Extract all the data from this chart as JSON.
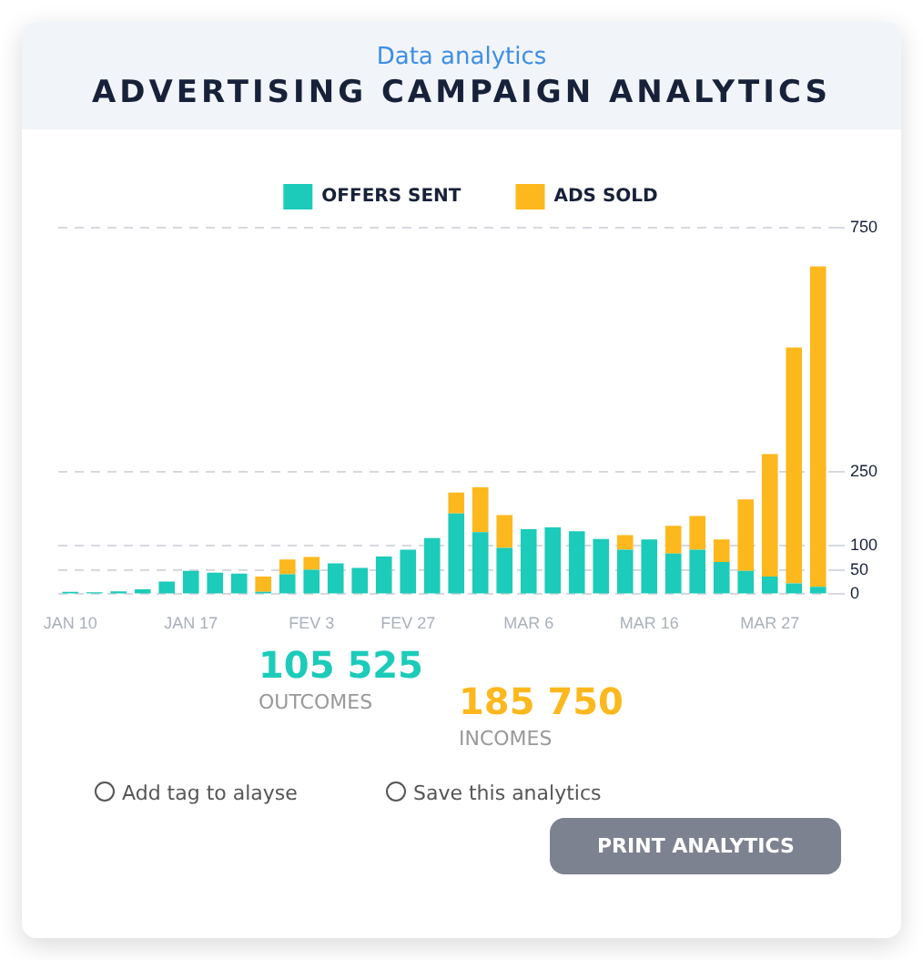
{
  "chart_data": {
    "type": "bar",
    "title": "ADVERTISING CAMPAIGN ANALYTICS",
    "subtitle": "Data analytics",
    "categories": [
      "JAN 10",
      null,
      null,
      null,
      null,
      "JAN 17",
      null,
      null,
      null,
      null,
      "FEV 3",
      null,
      null,
      null,
      "FEV 27",
      null,
      null,
      null,
      null,
      "MAR 6",
      null,
      null,
      null,
      null,
      "MAR 16",
      null,
      null,
      null,
      null,
      "MAR 27",
      null,
      null
    ],
    "series": [
      {
        "name": "OFFERS SENT",
        "color": "#1ccbb9",
        "values": [
          5,
          4,
          6,
          10,
          26,
          48,
          44,
          42,
          5,
          41,
          50,
          63,
          54,
          77,
          91,
          115,
          165,
          127,
          95,
          133,
          137,
          129,
          113,
          91,
          112,
          83,
          91,
          66,
          48,
          36,
          22,
          15
        ]
      },
      {
        "name": "ADS SOLD",
        "color": "#fdb81e",
        "values": [
          0,
          0,
          0,
          0,
          0,
          0,
          0,
          0,
          31,
          30,
          26,
          0,
          0,
          0,
          0,
          0,
          43,
          92,
          67,
          0,
          0,
          0,
          0,
          30,
          0,
          57,
          69,
          46,
          146,
          251,
          483,
          656
        ]
      }
    ],
    "stacked": true,
    "ylim": [
      0,
      750
    ],
    "yticks": [
      0,
      50,
      100,
      250,
      750
    ],
    "grid": "y",
    "legend": "top",
    "annotations": [
      "105 525",
      "OUTCOMES",
      "185 750",
      "INCOMES",
      "Add tag to alayse",
      "Save this analytics",
      "PRINT ANALYTICS"
    ]
  }
}
